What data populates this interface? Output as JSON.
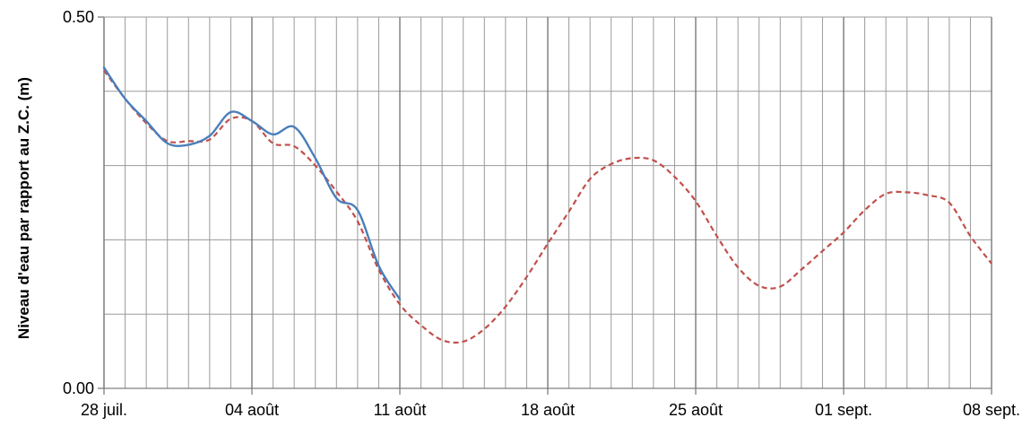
{
  "chart_data": {
    "type": "line",
    "title": "",
    "xlabel": "",
    "ylabel": "Niveau d'eau par rapport au Z.C. (m)",
    "x_tick_labels": [
      "28 juil.",
      "04 août",
      "11 août",
      "18 août",
      "25 août",
      "01 sept.",
      "08 sept."
    ],
    "x_tick_dates": [
      "2021-07-28",
      "2021-08-04",
      "2021-08-11",
      "2021-08-18",
      "2021-08-25",
      "2021-09-01",
      "2021-09-08"
    ],
    "y_tick_labels": [
      "0.00",
      "0.50"
    ],
    "ylim": [
      0,
      0.5
    ],
    "xlim": [
      "2021-07-28",
      "2021-09-08"
    ],
    "grid": true,
    "legend": "none",
    "series": [
      {
        "color": "#4a7ebb",
        "style": "solid",
        "points": [
          [
            "2021-07-28",
            0.432
          ],
          [
            "2021-07-29",
            0.39
          ],
          [
            "2021-07-30",
            0.36
          ],
          [
            "2021-07-31",
            0.33
          ],
          [
            "2021-08-01",
            0.328
          ],
          [
            "2021-08-02",
            0.34
          ],
          [
            "2021-08-03",
            0.372
          ],
          [
            "2021-08-04",
            0.36
          ],
          [
            "2021-08-05",
            0.342
          ],
          [
            "2021-08-06",
            0.352
          ],
          [
            "2021-08-07",
            0.31
          ],
          [
            "2021-08-08",
            0.256
          ],
          [
            "2021-08-09",
            0.24
          ],
          [
            "2021-08-10",
            0.165
          ],
          [
            "2021-08-11",
            0.12
          ]
        ]
      },
      {
        "color": "#c0504d",
        "style": "dashed",
        "points": [
          [
            "2021-07-28",
            0.428
          ],
          [
            "2021-07-29",
            0.39
          ],
          [
            "2021-07-30",
            0.357
          ],
          [
            "2021-07-31",
            0.333
          ],
          [
            "2021-08-01",
            0.333
          ],
          [
            "2021-08-02",
            0.335
          ],
          [
            "2021-08-03",
            0.363
          ],
          [
            "2021-08-04",
            0.36
          ],
          [
            "2021-08-05",
            0.33
          ],
          [
            "2021-08-06",
            0.326
          ],
          [
            "2021-08-07",
            0.3
          ],
          [
            "2021-08-08",
            0.265
          ],
          [
            "2021-08-09",
            0.225
          ],
          [
            "2021-08-10",
            0.16
          ],
          [
            "2021-08-11",
            0.113
          ],
          [
            "2021-08-12",
            0.085
          ],
          [
            "2021-08-13",
            0.065
          ],
          [
            "2021-08-14",
            0.063
          ],
          [
            "2021-08-15",
            0.08
          ],
          [
            "2021-08-16",
            0.11
          ],
          [
            "2021-08-17",
            0.15
          ],
          [
            "2021-08-18",
            0.195
          ],
          [
            "2021-08-19",
            0.238
          ],
          [
            "2021-08-20",
            0.282
          ],
          [
            "2021-08-21",
            0.302
          ],
          [
            "2021-08-22",
            0.31
          ],
          [
            "2021-08-23",
            0.307
          ],
          [
            "2021-08-24",
            0.285
          ],
          [
            "2021-08-25",
            0.252
          ],
          [
            "2021-08-26",
            0.205
          ],
          [
            "2021-08-27",
            0.163
          ],
          [
            "2021-08-28",
            0.138
          ],
          [
            "2021-08-29",
            0.137
          ],
          [
            "2021-08-30",
            0.16
          ],
          [
            "2021-08-31",
            0.185
          ],
          [
            "2021-09-01",
            0.21
          ],
          [
            "2021-09-02",
            0.24
          ],
          [
            "2021-09-03",
            0.262
          ],
          [
            "2021-09-04",
            0.264
          ],
          [
            "2021-09-05",
            0.26
          ],
          [
            "2021-09-06",
            0.25
          ],
          [
            "2021-09-07",
            0.205
          ],
          [
            "2021-09-08",
            0.168
          ]
        ]
      }
    ]
  }
}
